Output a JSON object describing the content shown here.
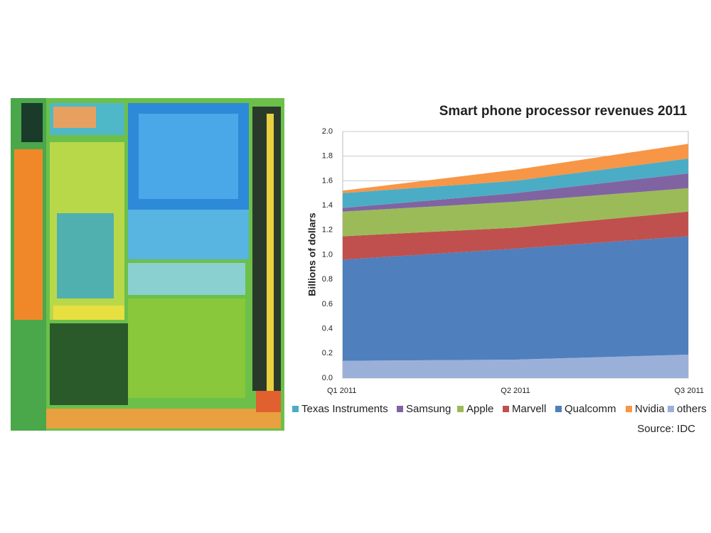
{
  "chart_data": {
    "type": "stacked_area",
    "title": "Smart phone processor revenues 2011",
    "y_label": "Billions of dollars",
    "source": "Source:  IDC",
    "categories": [
      "Q1 2011",
      "Q2 2011",
      "Q3 2011"
    ],
    "series": [
      {
        "name": "others",
        "color": "#9ab0d8",
        "values": [
          0.14,
          0.15,
          0.19
        ]
      },
      {
        "name": "Qualcomm",
        "color": "#4f7fbd",
        "values": [
          0.82,
          0.9,
          0.96
        ]
      },
      {
        "name": "Marvell",
        "color": "#c0504d",
        "values": [
          0.19,
          0.17,
          0.2
        ]
      },
      {
        "name": "Apple",
        "color": "#9bbb59",
        "values": [
          0.2,
          0.21,
          0.19
        ]
      },
      {
        "name": "Samsung",
        "color": "#8064a2",
        "values": [
          0.03,
          0.07,
          0.12
        ]
      },
      {
        "name": "Texas Instruments",
        "color": "#4bacc6",
        "values": [
          0.12,
          0.1,
          0.12
        ]
      },
      {
        "name": "Nvidia",
        "color": "#f79646",
        "values": [
          0.02,
          0.09,
          0.12
        ]
      }
    ],
    "ylim": [
      0,
      2
    ],
    "yticks": [
      {
        "value": 0,
        "label": "0.0"
      },
      0.2,
      0.4,
      0.6,
      0.8,
      {
        "value": 1,
        "label": "1.0"
      },
      1.2,
      1.4,
      1.6,
      1.8,
      {
        "value": 2,
        "label": "2.0"
      }
    ],
    "grid": true
  }
}
